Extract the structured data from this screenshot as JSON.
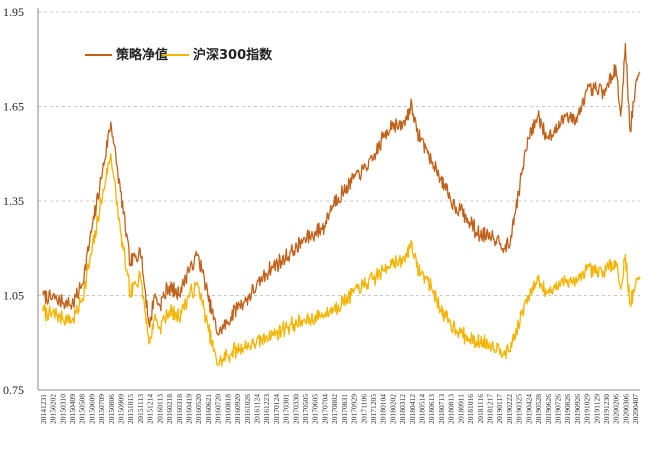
{
  "chart_data": {
    "type": "line",
    "title": "",
    "xlabel": "",
    "ylabel": "",
    "ylim": [
      0.75,
      1.95
    ],
    "yticks": [
      "0.75",
      "1.05",
      "1.35",
      "1.65",
      "1.95"
    ],
    "grid": "horizontal-dashed",
    "legend_position": "top-left",
    "x_tick_labels": [
      "20141231",
      "20150202",
      "20150310",
      "20150409",
      "20150508",
      "20150609",
      "20150709",
      "20150806",
      "20150909",
      "20151015",
      "20151113",
      "20151214",
      "20160113",
      "20160218",
      "20160318",
      "20160419",
      "20160520",
      "20160621",
      "20160720",
      "20160818",
      "20160920",
      "20161026",
      "20161124",
      "20161223",
      "20170124",
      "20170301",
      "20170330",
      "20170505",
      "20170605",
      "20170704",
      "20170802",
      "20170831",
      "20170929",
      "20171106",
      "20171205",
      "20180104",
      "20180202",
      "20180312",
      "20180412",
      "20180514",
      "20180613",
      "20180713",
      "20180813",
      "20180911",
      "20181016",
      "20181116",
      "20181217",
      "20190117",
      "20190222",
      "20190325",
      "20190424",
      "20190528",
      "20190626",
      "20190726",
      "20190826",
      "20190926",
      "20191029",
      "20191129",
      "20191230",
      "20200206",
      "20200306",
      "20200407"
    ],
    "series": [
      {
        "name": "策略净值",
        "color": "#c0621b",
        "anchors": [
          [
            0,
            1.05
          ],
          [
            2,
            1.03
          ],
          [
            3,
            1.02
          ],
          [
            4,
            1.08
          ],
          [
            5,
            1.25
          ],
          [
            6,
            1.42
          ],
          [
            7,
            1.6
          ],
          [
            8,
            1.38
          ],
          [
            9,
            1.15
          ],
          [
            10,
            1.2
          ],
          [
            11,
            0.95
          ],
          [
            11.5,
            1.05
          ],
          [
            12,
            1.02
          ],
          [
            13,
            1.08
          ],
          [
            14,
            1.05
          ],
          [
            15,
            1.13
          ],
          [
            16,
            1.18
          ],
          [
            17,
            1.05
          ],
          [
            18,
            0.93
          ],
          [
            19,
            0.96
          ],
          [
            20,
            1.02
          ],
          [
            21,
            1.04
          ],
          [
            22,
            1.08
          ],
          [
            23,
            1.12
          ],
          [
            24,
            1.15
          ],
          [
            25,
            1.17
          ],
          [
            26,
            1.2
          ],
          [
            27,
            1.23
          ],
          [
            28,
            1.25
          ],
          [
            29,
            1.27
          ],
          [
            30,
            1.35
          ],
          [
            31,
            1.38
          ],
          [
            32,
            1.42
          ],
          [
            33,
            1.45
          ],
          [
            34,
            1.48
          ],
          [
            35,
            1.55
          ],
          [
            36,
            1.6
          ],
          [
            37,
            1.58
          ],
          [
            38,
            1.66
          ],
          [
            38.5,
            1.57
          ],
          [
            39,
            1.55
          ],
          [
            40,
            1.48
          ],
          [
            41,
            1.42
          ],
          [
            42,
            1.35
          ],
          [
            43,
            1.32
          ],
          [
            44,
            1.28
          ],
          [
            45,
            1.24
          ],
          [
            46,
            1.25
          ],
          [
            47,
            1.22
          ],
          [
            48,
            1.2
          ],
          [
            49,
            1.38
          ],
          [
            50,
            1.55
          ],
          [
            51,
            1.62
          ],
          [
            52,
            1.55
          ],
          [
            53,
            1.58
          ],
          [
            54,
            1.63
          ],
          [
            55,
            1.6
          ],
          [
            56,
            1.7
          ],
          [
            57,
            1.7
          ],
          [
            58,
            1.7
          ],
          [
            59,
            1.78
          ],
          [
            59.5,
            1.62
          ],
          [
            60,
            1.85
          ],
          [
            60.5,
            1.57
          ],
          [
            61,
            1.7
          ],
          [
            61.5,
            1.76
          ]
        ]
      },
      {
        "name": "沪深300指数",
        "color": "#f4b400",
        "anchors": [
          [
            0,
            1.0
          ],
          [
            2,
            0.98
          ],
          [
            3,
            0.97
          ],
          [
            4,
            1.03
          ],
          [
            5,
            1.18
          ],
          [
            6,
            1.35
          ],
          [
            7,
            1.5
          ],
          [
            8,
            1.25
          ],
          [
            9,
            1.05
          ],
          [
            10,
            1.12
          ],
          [
            11,
            0.9
          ],
          [
            11.5,
            0.98
          ],
          [
            12,
            0.95
          ],
          [
            13,
            1.0
          ],
          [
            14,
            0.98
          ],
          [
            15,
            1.05
          ],
          [
            16,
            1.08
          ],
          [
            17,
            0.95
          ],
          [
            18,
            0.83
          ],
          [
            19,
            0.86
          ],
          [
            20,
            0.88
          ],
          [
            21,
            0.89
          ],
          [
            22,
            0.9
          ],
          [
            23,
            0.92
          ],
          [
            24,
            0.93
          ],
          [
            25,
            0.95
          ],
          [
            26,
            0.96
          ],
          [
            27,
            0.97
          ],
          [
            28,
            0.98
          ],
          [
            29,
            0.99
          ],
          [
            30,
            1.01
          ],
          [
            31,
            1.03
          ],
          [
            32,
            1.06
          ],
          [
            33,
            1.08
          ],
          [
            34,
            1.1
          ],
          [
            35,
            1.13
          ],
          [
            36,
            1.16
          ],
          [
            37,
            1.15
          ],
          [
            38,
            1.22
          ],
          [
            38.5,
            1.14
          ],
          [
            39,
            1.12
          ],
          [
            40,
            1.08
          ],
          [
            41,
            1.0
          ],
          [
            42,
            0.96
          ],
          [
            43,
            0.93
          ],
          [
            44,
            0.91
          ],
          [
            45,
            0.9
          ],
          [
            46,
            0.9
          ],
          [
            47,
            0.88
          ],
          [
            48,
            0.87
          ],
          [
            49,
            0.96
          ],
          [
            50,
            1.05
          ],
          [
            51,
            1.1
          ],
          [
            52,
            1.06
          ],
          [
            53,
            1.08
          ],
          [
            54,
            1.1
          ],
          [
            55,
            1.09
          ],
          [
            56,
            1.13
          ],
          [
            57,
            1.12
          ],
          [
            58,
            1.13
          ],
          [
            59,
            1.16
          ],
          [
            59.5,
            1.07
          ],
          [
            60,
            1.18
          ],
          [
            60.5,
            1.02
          ],
          [
            61,
            1.08
          ],
          [
            61.5,
            1.11
          ]
        ]
      }
    ]
  }
}
